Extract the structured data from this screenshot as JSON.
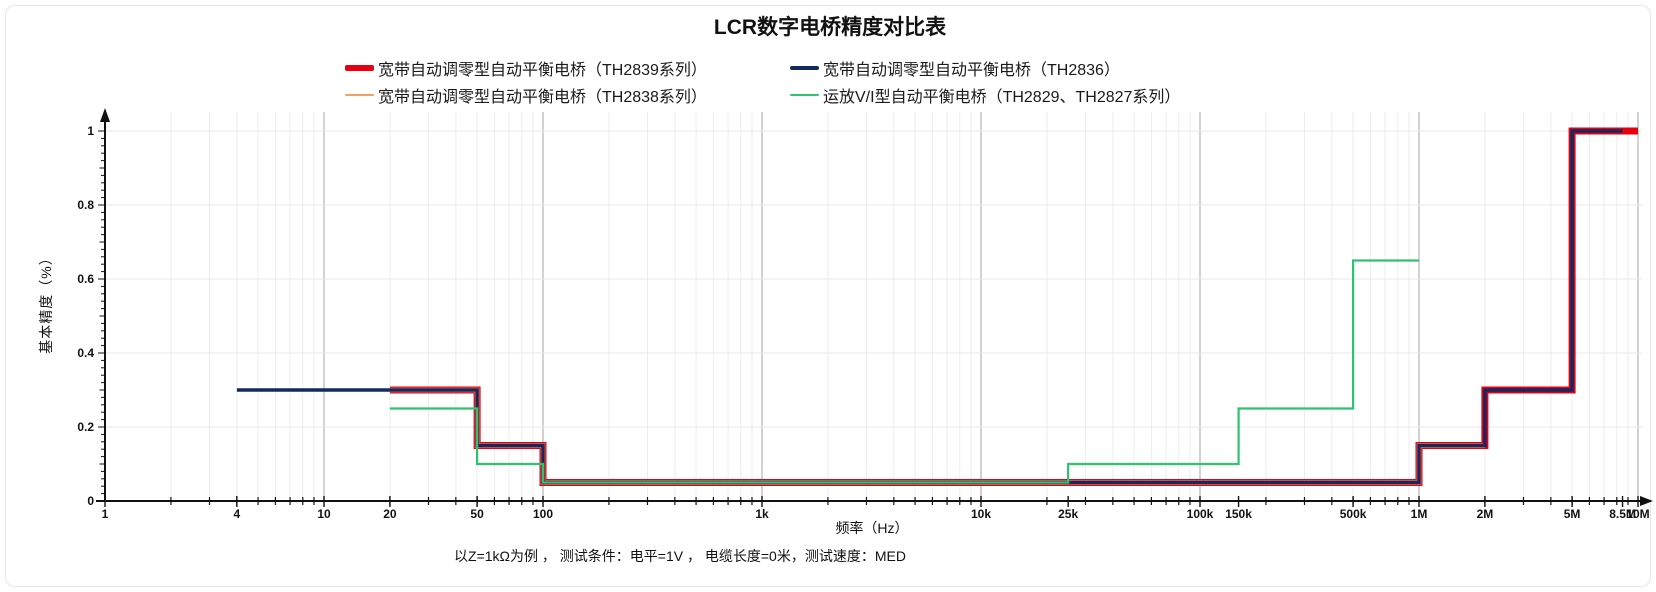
{
  "title": "LCR数字电桥精度对比表",
  "footer": "以Z=1kΩ为例 ， 测试条件：电平=1V ， 电缆长度=0米，测试速度：MED",
  "legend": [
    {
      "label": "宽带自动调零型自动平衡电桥（TH2839系列）",
      "color": "#e60012",
      "thickness": 6
    },
    {
      "label": "宽带自动调零型自动平衡电桥（TH2836）",
      "color": "#14295f",
      "thickness": 4
    },
    {
      "label": "宽带自动调零型自动平衡电桥（TH2838系列）",
      "color": "#f2a163",
      "thickness": 2
    },
    {
      "label": "运放V/I型自动平衡电桥（TH2829、TH2827系列）",
      "color": "#2ec46f",
      "thickness": 2
    }
  ],
  "colors": {
    "axis": "#111111",
    "grid_minor": "#ededed",
    "grid_major": "#b3b3b3",
    "grid_horizontal": "#e8e8e8",
    "tick_label": "#111111"
  },
  "chart_data": {
    "type": "line",
    "subtype": "step",
    "x_scale": "log",
    "title": "LCR数字电桥精度对比表",
    "xlabel": "频率（Hz）",
    "ylabel": "基本精度（%）",
    "xlim": [
      1,
      10000000
    ],
    "ylim": [
      0,
      1.05
    ],
    "legend_position": "top",
    "grid": {
      "horizontal_at": [
        0.2,
        0.4,
        0.6,
        0.8,
        1.0
      ],
      "vertical_minor": "2..9 within each decade",
      "vertical_major_at": [
        10,
        100,
        1000,
        10000,
        100000,
        1000000,
        10000000
      ]
    },
    "x_ticks": [
      {
        "f": 1,
        "label": "1"
      },
      {
        "f": 4,
        "label": "4"
      },
      {
        "f": 10,
        "label": "10"
      },
      {
        "f": 20,
        "label": "20"
      },
      {
        "f": 50,
        "label": "50"
      },
      {
        "f": 100,
        "label": "100"
      },
      {
        "f": 1000,
        "label": "1k"
      },
      {
        "f": 10000,
        "label": "10k"
      },
      {
        "f": 25000,
        "label": "25k"
      },
      {
        "f": 100000,
        "label": "100k"
      },
      {
        "f": 150000,
        "label": "150k"
      },
      {
        "f": 500000,
        "label": "500k"
      },
      {
        "f": 1000000,
        "label": "1M"
      },
      {
        "f": 2000000,
        "label": "2M"
      },
      {
        "f": 5000000,
        "label": "5M"
      },
      {
        "f": 8500000,
        "label": "8.5M"
      },
      {
        "f": 10000000,
        "label": "10M"
      }
    ],
    "y_ticks": [
      {
        "v": 0,
        "label": "0"
      },
      {
        "v": 0.2,
        "label": "0.2"
      },
      {
        "v": 0.4,
        "label": "0.4"
      },
      {
        "v": 0.6,
        "label": "0.6"
      },
      {
        "v": 0.8,
        "label": "0.8"
      },
      {
        "v": 1,
        "label": "1"
      }
    ],
    "series": [
      {
        "name": "宽带自动调零型自动平衡电桥（TH2839系列）",
        "color": "#e60012",
        "width": 7,
        "points": [
          [
            20,
            0.3
          ],
          [
            50,
            0.3
          ],
          [
            50,
            0.15
          ],
          [
            100,
            0.15
          ],
          [
            100,
            0.05
          ],
          [
            1000000,
            0.05
          ],
          [
            1000000,
            0.15
          ],
          [
            2000000,
            0.15
          ],
          [
            2000000,
            0.3
          ],
          [
            5000000,
            0.3
          ],
          [
            5000000,
            1.0
          ],
          [
            10000000,
            1.0
          ]
        ]
      },
      {
        "name": "宽带自动调零型自动平衡电桥（TH2838系列）",
        "color": "#f2a163",
        "width": 4.5,
        "points": [
          [
            20,
            0.3
          ],
          [
            50,
            0.3
          ],
          [
            50,
            0.15
          ],
          [
            100,
            0.15
          ],
          [
            100,
            0.05
          ],
          [
            1000000,
            0.05
          ],
          [
            1000000,
            0.15
          ],
          [
            2000000,
            0.15
          ]
        ]
      },
      {
        "name": "宽带自动调零型自动平衡电桥（TH2836）",
        "color": "#14295f",
        "width": 3.5,
        "points": [
          [
            4,
            0.3
          ],
          [
            50,
            0.3
          ],
          [
            50,
            0.15
          ],
          [
            100,
            0.15
          ],
          [
            100,
            0.05
          ],
          [
            1000000,
            0.05
          ],
          [
            1000000,
            0.15
          ],
          [
            2000000,
            0.15
          ],
          [
            2000000,
            0.3
          ],
          [
            5000000,
            0.3
          ],
          [
            5000000,
            1.0
          ],
          [
            8500000,
            1.0
          ]
        ]
      },
      {
        "name": "运放V/I型自动平衡电桥（TH2829、TH2827系列）",
        "color": "#2ec46f",
        "width": 2.2,
        "points": [
          [
            20,
            0.25
          ],
          [
            50,
            0.25
          ],
          [
            50,
            0.1
          ],
          [
            100,
            0.1
          ],
          [
            100,
            0.05
          ],
          [
            25000,
            0.05
          ],
          [
            25000,
            0.1
          ],
          [
            150000,
            0.1
          ],
          [
            150000,
            0.25
          ],
          [
            500000,
            0.25
          ],
          [
            500000,
            0.65
          ],
          [
            1000000,
            0.65
          ]
        ]
      }
    ]
  }
}
